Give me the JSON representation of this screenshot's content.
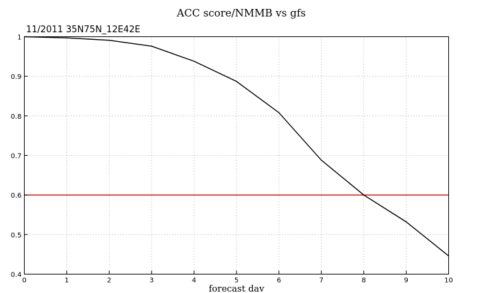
{
  "chart_data": {
    "type": "line",
    "title": "ACC score/NMMB vs gfs",
    "subtitle": "11/2011 35N75N_12E42E",
    "xlabel": "forecast dav",
    "ylabel": "",
    "xlim": [
      0,
      10
    ],
    "ylim": [
      0.4,
      1.0
    ],
    "x_ticks": [
      0,
      1,
      2,
      3,
      4,
      5,
      6,
      7,
      8,
      9,
      10
    ],
    "y_ticks": [
      0.4,
      0.5,
      0.6,
      0.7,
      0.8,
      0.9,
      1
    ],
    "y_tick_labels": [
      "0.4",
      "0.5",
      "0.6",
      "0.7",
      "0.8",
      "0.9",
      "1"
    ],
    "grid": true,
    "legend": "none",
    "series": [
      {
        "x": [
          0,
          1,
          2,
          3,
          4,
          5,
          6,
          7,
          8,
          9,
          10
        ],
        "values": [
          1.0,
          0.997,
          0.991,
          0.976,
          0.938,
          0.887,
          0.808,
          0.688,
          0.6,
          0.532,
          0.446
        ],
        "color": "#000000"
      }
    ],
    "reference_lines": [
      {
        "y": 0.6,
        "color": "#e00000"
      }
    ]
  }
}
